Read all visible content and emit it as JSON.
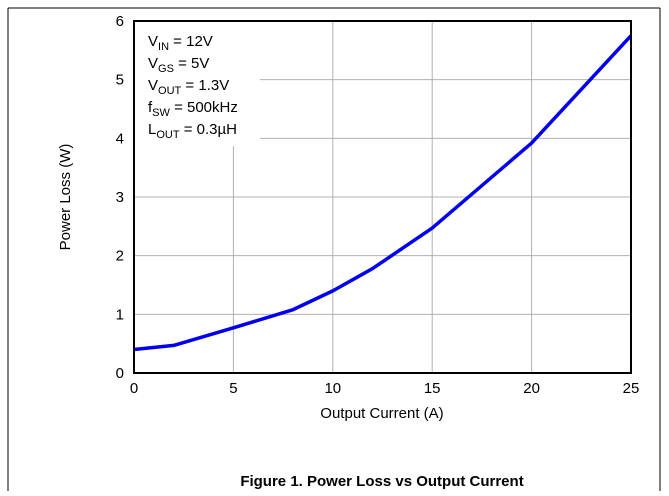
{
  "chart_data": {
    "type": "line",
    "x_label": "Output Current (A)",
    "y_label": "Power Loss (W)",
    "caption": "Figure 1. Power Loss vs Output Current",
    "annotations": [
      {
        "main": "V",
        "sub": "IN",
        "rest": " = 12V"
      },
      {
        "main": "V",
        "sub": "GS",
        "rest": " = 5V"
      },
      {
        "main": "V",
        "sub": "OUT",
        "rest": " = 1.3V"
      },
      {
        "main": "f",
        "sub": "SW",
        "rest": " = 500kHz"
      },
      {
        "main": "L",
        "sub": "OUT",
        "rest": " = 0.3µH"
      }
    ],
    "x": [
      0,
      2,
      5,
      8,
      10,
      12,
      15,
      20,
      25
    ],
    "series": [
      {
        "name": "Power Loss",
        "color": "#0000ee",
        "values": [
          0.4,
          0.47,
          0.77,
          1.08,
          1.4,
          1.78,
          2.47,
          3.92,
          5.75
        ]
      }
    ],
    "xlim": [
      0,
      25
    ],
    "xticks": [
      0,
      5,
      10,
      15,
      20,
      25
    ],
    "ylim": [
      0,
      6
    ],
    "yticks": [
      0,
      1,
      2,
      3,
      4,
      5,
      6
    ],
    "grid": true
  }
}
